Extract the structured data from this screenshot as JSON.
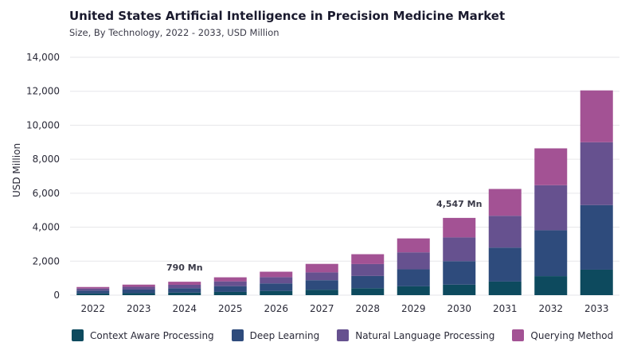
{
  "header": {
    "title": "United States Artificial Intelligence in Precision Medicine Market",
    "subtitle": "Size, By Technology, 2022 - 2033, USD Million"
  },
  "colors": {
    "context_aware": "#0d4a5e",
    "deep_learning": "#2e4b7c",
    "nlp": "#66518f",
    "querying": "#a35294",
    "grid": "#e6e6ea",
    "axis_text": "#2a2a38",
    "annotation": "#3a3a48"
  },
  "chart_data": {
    "type": "bar",
    "stacked": true,
    "categories": [
      "2022",
      "2023",
      "2024",
      "2025",
      "2026",
      "2027",
      "2028",
      "2029",
      "2030",
      "2031",
      "2032",
      "2033"
    ],
    "series": [
      {
        "name": "Context Aware Processing",
        "values": [
          100,
          120,
          150,
          190,
          250,
          320,
          410,
          520,
          620,
          800,
          1120,
          1500
        ]
      },
      {
        "name": "Deep Learning",
        "values": [
          170,
          210,
          260,
          340,
          440,
          560,
          720,
          1000,
          1380,
          2000,
          2700,
          3800
        ]
      },
      {
        "name": "Natural Language Processing",
        "values": [
          120,
          160,
          200,
          280,
          370,
          460,
          700,
          1000,
          1400,
          1870,
          2650,
          3700
        ]
      },
      {
        "name": "Querying Method",
        "values": [
          90,
          130,
          180,
          240,
          320,
          500,
          580,
          820,
          1147,
          1580,
          2170,
          3050
        ]
      }
    ],
    "ylabel": "USD Million",
    "ylim": [
      0,
      14000
    ],
    "yticks": [
      0,
      2000,
      4000,
      6000,
      8000,
      10000,
      12000,
      14000
    ],
    "ytick_labels": [
      "0",
      "2,000",
      "4,000",
      "6,000",
      "8,000",
      "10,000",
      "12,000",
      "14,000"
    ],
    "grid": true,
    "legend_position": "bottom",
    "annotations": [
      {
        "category": "2024",
        "text": "790 Mn"
      },
      {
        "category": "2030",
        "text": "4,547 Mn"
      }
    ]
  }
}
